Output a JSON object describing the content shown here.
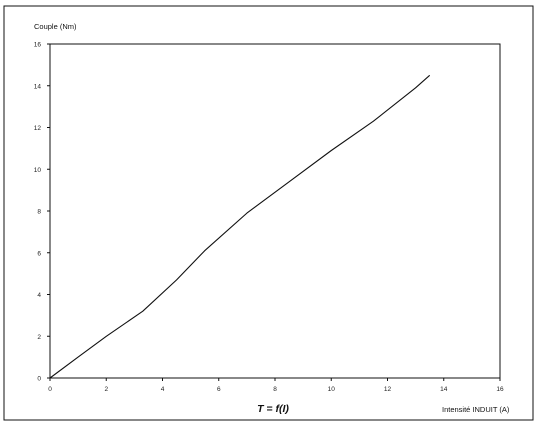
{
  "chart_data": {
    "type": "line",
    "title": "T = f(I)",
    "xlabel": "Intensité INDUIT (A)",
    "ylabel": "Couple (Nm)",
    "xlim": [
      0,
      16
    ],
    "ylim": [
      0,
      16
    ],
    "x_ticks": [
      "0",
      "2",
      "4",
      "6",
      "8",
      "10",
      "12",
      "14",
      "16"
    ],
    "y_ticks": [
      "0",
      "2",
      "4",
      "6",
      "8",
      "10",
      "12",
      "14",
      "16"
    ],
    "grid": false,
    "legend": "none",
    "series": [
      {
        "color": "#111111",
        "x": [
          0,
          1,
          2,
          3.3,
          4.5,
          5.5,
          7,
          8.5,
          10,
          11.5,
          13,
          13.5
        ],
        "y": [
          0,
          1.0,
          2.0,
          3.2,
          4.7,
          6.1,
          7.9,
          9.4,
          10.9,
          12.3,
          13.9,
          14.5
        ]
      }
    ]
  }
}
